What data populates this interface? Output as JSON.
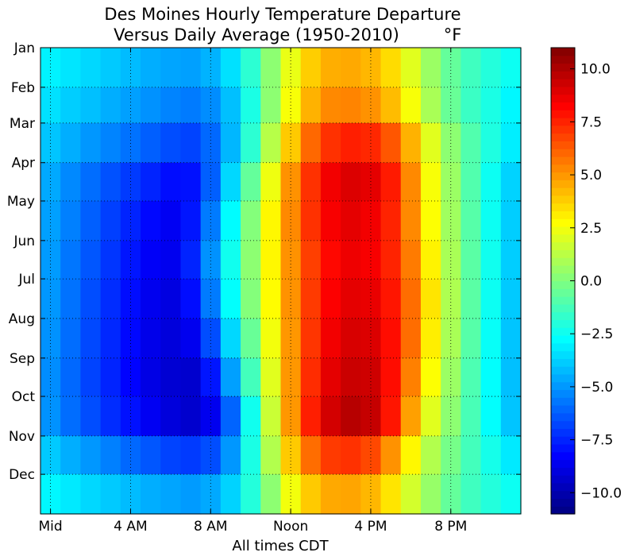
{
  "chart_data": {
    "type": "heatmap",
    "title_line1": "Des Moines Hourly Temperature Departure",
    "title_line2": "Versus Daily Average (1950-2010)",
    "title_unit": "°F",
    "xlabel": "All times CDT",
    "ylabel": "",
    "x_tick_labels": [
      "Mid",
      "4 AM",
      "8 AM",
      "Noon",
      "4 PM",
      "8 PM"
    ],
    "x_tick_hours": [
      0,
      4,
      8,
      12,
      16,
      20
    ],
    "xlim": [
      -0.5,
      23.5
    ],
    "y_tick_labels": [
      "Jan",
      "Feb",
      "Mar",
      "Apr",
      "May",
      "Jun",
      "Jul",
      "Aug",
      "Sep",
      "Oct",
      "Nov",
      "Dec"
    ],
    "y_tick_days": [
      1,
      32,
      60,
      91,
      121,
      152,
      182,
      213,
      244,
      274,
      305,
      335
    ],
    "ylim": [
      1,
      366
    ],
    "hours": [
      0,
      1,
      2,
      3,
      4,
      5,
      6,
      7,
      8,
      9,
      10,
      11,
      12,
      13,
      14,
      15,
      16,
      17,
      18,
      19,
      20,
      21,
      22,
      23
    ],
    "rows_by_month": [
      {
        "month": "Jan",
        "values": [
          -3.0,
          -3.3,
          -3.6,
          -3.9,
          -4.2,
          -4.5,
          -4.7,
          -4.8,
          -4.4,
          -3.4,
          -1.8,
          0.3,
          2.3,
          3.8,
          4.5,
          4.6,
          4.3,
          3.5,
          2.1,
          0.6,
          -0.6,
          -1.4,
          -2.0,
          -2.5
        ]
      },
      {
        "month": "Feb",
        "values": [
          -3.4,
          -3.8,
          -4.1,
          -4.5,
          -4.8,
          -5.1,
          -5.4,
          -5.6,
          -5.2,
          -4.1,
          -2.2,
          0.3,
          2.6,
          4.4,
          5.3,
          5.4,
          5.1,
          4.2,
          2.6,
          0.9,
          -0.5,
          -1.5,
          -2.2,
          -2.9
        ]
      },
      {
        "month": "Mar",
        "values": [
          -4.0,
          -4.5,
          -5.0,
          -5.4,
          -5.8,
          -6.2,
          -6.6,
          -6.8,
          -6.0,
          -4.3,
          -1.8,
          1.2,
          3.9,
          6.0,
          7.2,
          7.6,
          7.4,
          6.4,
          4.4,
          2.1,
          0.3,
          -1.0,
          -2.1,
          -3.1
        ]
      },
      {
        "month": "Apr",
        "values": [
          -4.6,
          -5.3,
          -5.9,
          -6.5,
          -7.0,
          -7.5,
          -8.0,
          -7.9,
          -6.2,
          -3.6,
          -0.6,
          2.4,
          5.1,
          7.2,
          8.5,
          9.0,
          8.8,
          7.7,
          5.3,
          2.6,
          0.6,
          -1.0,
          -2.5,
          -3.7
        ]
      },
      {
        "month": "May",
        "values": [
          -4.8,
          -5.5,
          -6.2,
          -6.9,
          -7.5,
          -8.1,
          -8.5,
          -7.8,
          -5.6,
          -2.8,
          0.1,
          2.9,
          5.3,
          7.2,
          8.4,
          8.8,
          8.5,
          7.5,
          5.3,
          2.7,
          0.7,
          -0.9,
          -2.5,
          -3.8
        ]
      },
      {
        "month": "Jun",
        "values": [
          -4.9,
          -5.7,
          -6.4,
          -7.1,
          -7.8,
          -8.4,
          -8.6,
          -7.5,
          -5.1,
          -2.4,
          0.3,
          2.9,
          5.1,
          6.9,
          8.1,
          8.6,
          8.4,
          7.5,
          5.6,
          3.0,
          0.9,
          -0.8,
          -2.4,
          -3.8
        ]
      },
      {
        "month": "Jul",
        "values": [
          -5.0,
          -5.8,
          -6.6,
          -7.3,
          -8.0,
          -8.6,
          -8.9,
          -8.0,
          -5.6,
          -2.7,
          0.1,
          2.8,
          5.1,
          7.0,
          8.3,
          8.8,
          8.7,
          7.8,
          5.9,
          3.3,
          1.0,
          -0.8,
          -2.5,
          -3.9
        ]
      },
      {
        "month": "Aug",
        "values": [
          -5.1,
          -5.9,
          -6.7,
          -7.4,
          -8.1,
          -8.7,
          -9.0,
          -8.6,
          -6.6,
          -3.6,
          -0.5,
          2.5,
          5.0,
          7.1,
          8.5,
          9.1,
          9.0,
          8.0,
          5.9,
          3.1,
          0.9,
          -0.9,
          -2.6,
          -4.0
        ]
      },
      {
        "month": "Sep",
        "values": [
          -5.2,
          -6.0,
          -6.8,
          -7.5,
          -8.2,
          -8.8,
          -9.2,
          -9.3,
          -7.8,
          -4.8,
          -1.3,
          2.1,
          5.0,
          7.3,
          8.8,
          9.4,
          9.3,
          8.0,
          5.5,
          2.7,
          0.6,
          -1.1,
          -2.7,
          -4.1
        ]
      },
      {
        "month": "Oct",
        "values": [
          -5.1,
          -5.9,
          -6.6,
          -7.3,
          -7.9,
          -8.5,
          -9.0,
          -9.3,
          -8.6,
          -6.1,
          -2.4,
          1.6,
          5.0,
          7.6,
          9.2,
          9.8,
          9.5,
          7.8,
          4.8,
          2.1,
          0.3,
          -1.2,
          -2.7,
          -4.0
        ]
      },
      {
        "month": "Nov",
        "values": [
          -3.9,
          -4.5,
          -5.0,
          -5.5,
          -6.0,
          -6.4,
          -6.8,
          -7.0,
          -6.6,
          -5.0,
          -2.2,
          1.1,
          3.9,
          5.9,
          7.0,
          7.2,
          6.7,
          5.1,
          2.9,
          1.1,
          -0.2,
          -1.3,
          -2.3,
          -3.2
        ]
      },
      {
        "month": "Dec",
        "values": [
          -2.9,
          -3.2,
          -3.6,
          -3.9,
          -4.2,
          -4.5,
          -4.7,
          -4.9,
          -4.6,
          -3.7,
          -2.0,
          0.3,
          2.5,
          3.9,
          4.6,
          4.7,
          4.3,
          3.3,
          1.8,
          0.5,
          -0.6,
          -1.4,
          -2.0,
          -2.5
        ]
      }
    ],
    "colorbar": {
      "colormap": "jet",
      "vmin": -11,
      "vmax": 11,
      "tick_values": [
        10.0,
        7.5,
        5.0,
        2.5,
        0.0,
        -2.5,
        -5.0,
        -7.5,
        -10.0
      ],
      "tick_labels": [
        "10.0",
        "7.5",
        "5.0",
        "2.5",
        "0.0",
        "−2.5",
        "−5.0",
        "−7.5",
        "−10.0"
      ]
    },
    "grid": true,
    "grid_style": "dotted"
  }
}
